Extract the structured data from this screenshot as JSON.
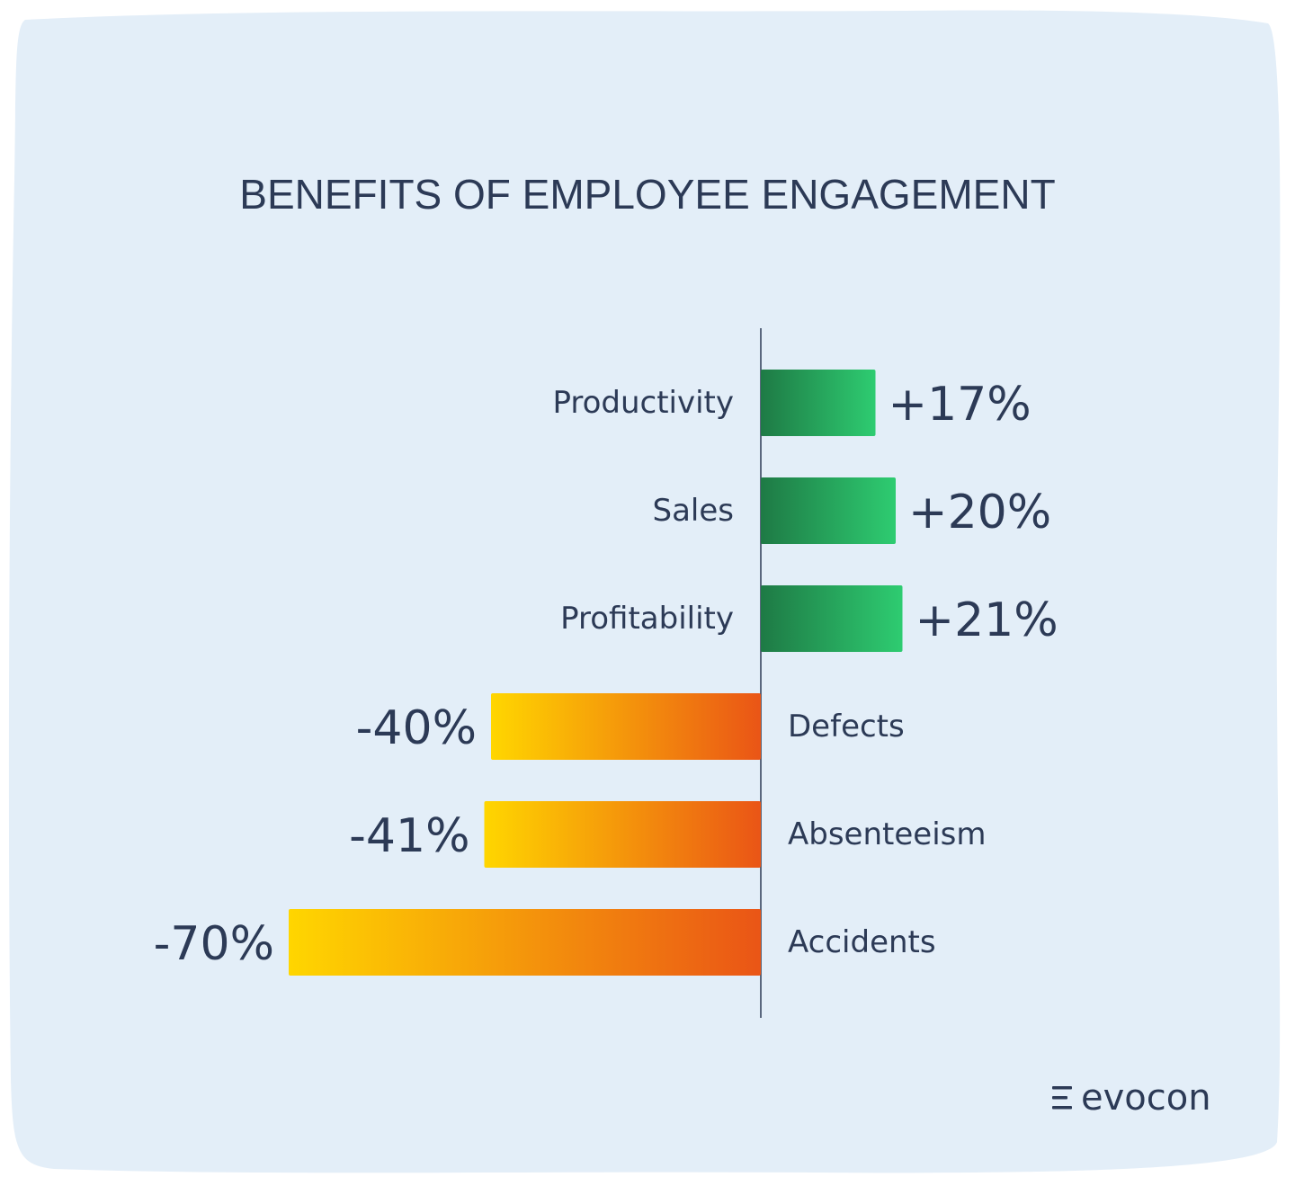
{
  "colors": {
    "background_panel": "#e3eef8",
    "text": "#2c3a56",
    "axis": "#2c3a56",
    "positive_dark": "#1e7a45",
    "positive_light": "#2ecc71",
    "negative_yellow": "#ffd600",
    "negative_orange": "#ea5516"
  },
  "brand": {
    "name": "evocon",
    "icon": "evocon-logo-icon"
  },
  "chart_data": {
    "type": "bar",
    "orientation": "horizontal-diverging",
    "title": "BENEFITS OF EMPLOYEE ENGAGEMENT",
    "xlabel": "",
    "ylabel": "",
    "unit": "%",
    "grid": false,
    "legend": "none",
    "xlim": [
      -70,
      21
    ],
    "categories": [
      "Productivity",
      "Sales",
      "Profitability",
      "Defects",
      "Absenteeism",
      "Accidents"
    ],
    "values": [
      17,
      20,
      21,
      -40,
      -41,
      -70
    ],
    "value_labels": [
      "+17%",
      "+20%",
      "+21%",
      "-40%",
      "-41%",
      "-70%"
    ]
  }
}
